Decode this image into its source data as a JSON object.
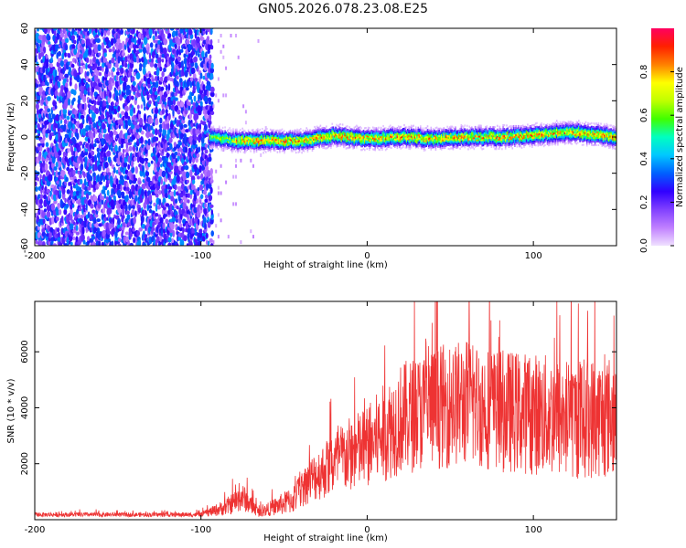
{
  "title": "GN05.2026.078.23.08.E25",
  "chart_data": [
    {
      "type": "heatmap",
      "title": "GN05.2026.078.23.08.E25",
      "xlabel": "Height of straight line (km)",
      "ylabel": "Frequency (Hz)",
      "xlim": [
        -200,
        150
      ],
      "ylim": [
        -60,
        60
      ],
      "xticks": [
        "-200",
        "-100",
        "0",
        "100"
      ],
      "yticks": [
        "-60",
        "-40",
        "-20",
        "0",
        "20",
        "40",
        "60"
      ],
      "colorbar": {
        "label": "Normalized spectral amplitude",
        "range": [
          0.0,
          1.0
        ],
        "ticks": [
          "0.0",
          "0.2",
          "0.4",
          "0.6",
          "0.8"
        ],
        "colors": [
          "#f0e0ff",
          "#c080ff",
          "#8040ff",
          "#3000ff",
          "#0060ff",
          "#00c8ff",
          "#00ffc0",
          "#40ff00",
          "#c0ff00",
          "#ffff00",
          "#ff8000",
          "#ff2000",
          "#ff0060"
        ]
      },
      "regions": {
        "noise_band": {
          "x_range": [
            -200,
            -93
          ],
          "freq_range": [
            -60,
            60
          ],
          "amplitude": "0.1-0.3"
        },
        "sparse_noise": {
          "x_range": [
            -93,
            -60
          ],
          "freq_range": [
            -60,
            60
          ],
          "amplitude": "0.05"
        },
        "signal_track": {
          "x_range": [
            -95,
            150
          ],
          "center_freq": 0,
          "bandwidth_hz": 8,
          "peak_amplitude": 0.95
        }
      },
      "track_center": [
        {
          "x": -95,
          "f": 0
        },
        {
          "x": -80,
          "f": -2
        },
        {
          "x": -60,
          "f": -2
        },
        {
          "x": -40,
          "f": -2
        },
        {
          "x": -20,
          "f": 1
        },
        {
          "x": 0,
          "f": -1
        },
        {
          "x": 20,
          "f": 0
        },
        {
          "x": 40,
          "f": -1
        },
        {
          "x": 60,
          "f": 0
        },
        {
          "x": 80,
          "f": 0
        },
        {
          "x": 100,
          "f": 1
        },
        {
          "x": 120,
          "f": 3
        },
        {
          "x": 150,
          "f": 0
        }
      ]
    },
    {
      "type": "line",
      "xlabel": "Height of straight line (km)",
      "ylabel": "SNR (10 * v/v)",
      "xlim": [
        -200,
        150
      ],
      "ylim": [
        0,
        7800
      ],
      "xticks": [
        "-200",
        "-100",
        "0",
        "100"
      ],
      "yticks": [
        "2000",
        "4000",
        "6000"
      ],
      "color": "#ee3333",
      "series": [
        {
          "name": "SNR",
          "envelope": [
            {
              "x": -200,
              "mean": 180,
              "spread": 80
            },
            {
              "x": -100,
              "mean": 180,
              "spread": 80
            },
            {
              "x": -85,
              "mean": 450,
              "spread": 300
            },
            {
              "x": -75,
              "mean": 800,
              "spread": 500
            },
            {
              "x": -65,
              "mean": 250,
              "spread": 150
            },
            {
              "x": -45,
              "mean": 700,
              "spread": 500
            },
            {
              "x": -35,
              "mean": 1400,
              "spread": 800
            },
            {
              "x": -15,
              "mean": 2200,
              "spread": 1300
            },
            {
              "x": 0,
              "mean": 2600,
              "spread": 1500
            },
            {
              "x": 20,
              "mean": 3600,
              "spread": 2000
            },
            {
              "x": 40,
              "mean": 4000,
              "spread": 2200
            },
            {
              "x": 60,
              "mean": 4200,
              "spread": 2300
            },
            {
              "x": 80,
              "mean": 3900,
              "spread": 2200
            },
            {
              "x": 100,
              "mean": 3800,
              "spread": 2200
            },
            {
              "x": 120,
              "mean": 3600,
              "spread": 2200
            },
            {
              "x": 150,
              "mean": 3700,
              "spread": 2200
            }
          ]
        }
      ]
    }
  ]
}
